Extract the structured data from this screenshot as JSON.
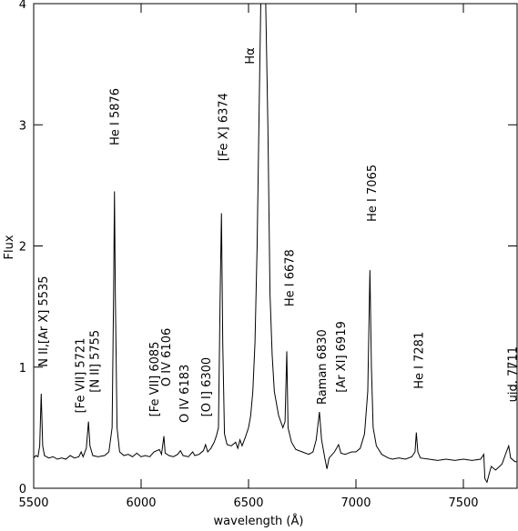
{
  "chart_data": {
    "type": "line",
    "x_label": "wavelength (Å)",
    "y_label": "Flux",
    "xlim": [
      5500,
      7750
    ],
    "ylim": [
      0,
      4
    ],
    "xticks": [
      5500,
      6000,
      6500,
      7000,
      7500
    ],
    "yticks": [
      0,
      1,
      2,
      3,
      4
    ],
    "color": "#000000",
    "x": [
      5500,
      5510,
      5520,
      5528,
      5535,
      5542,
      5550,
      5570,
      5590,
      5610,
      5630,
      5650,
      5670,
      5690,
      5710,
      5721,
      5730,
      5745,
      5755,
      5762,
      5775,
      5800,
      5830,
      5850,
      5865,
      5872,
      5876,
      5880,
      5888,
      5900,
      5920,
      5940,
      5960,
      5980,
      6000,
      6020,
      6040,
      6060,
      6085,
      6095,
      6106,
      6112,
      6130,
      6150,
      6170,
      6183,
      6195,
      6220,
      6240,
      6250,
      6270,
      6290,
      6300,
      6310,
      6325,
      6340,
      6350,
      6360,
      6368,
      6374,
      6380,
      6388,
      6400,
      6420,
      6440,
      6450,
      6460,
      6470,
      6485,
      6500,
      6510,
      6520,
      6530,
      6540,
      6550,
      6557,
      6580,
      6590,
      6600,
      6610,
      6620,
      6640,
      6660,
      6670,
      6678,
      6684,
      6700,
      6720,
      6750,
      6780,
      6800,
      6815,
      6830,
      6840,
      6855,
      6865,
      6875,
      6900,
      6919,
      6930,
      6950,
      6980,
      7000,
      7020,
      7040,
      7055,
      7065,
      7072,
      7080,
      7095,
      7120,
      7150,
      7170,
      7200,
      7230,
      7260,
      7275,
      7281,
      7288,
      7300,
      7340,
      7380,
      7420,
      7460,
      7500,
      7540,
      7580,
      7595,
      7600,
      7610,
      7620,
      7630,
      7650,
      7680,
      7700,
      7711,
      7720,
      7740,
      7750
    ],
    "values": [
      0.25,
      0.27,
      0.26,
      0.35,
      0.78,
      0.35,
      0.27,
      0.25,
      0.26,
      0.24,
      0.25,
      0.24,
      0.27,
      0.25,
      0.26,
      0.3,
      0.26,
      0.33,
      0.55,
      0.35,
      0.27,
      0.26,
      0.27,
      0.3,
      0.5,
      1.6,
      2.45,
      1.6,
      0.5,
      0.3,
      0.27,
      0.28,
      0.26,
      0.29,
      0.26,
      0.27,
      0.26,
      0.3,
      0.32,
      0.28,
      0.43,
      0.29,
      0.27,
      0.26,
      0.28,
      0.31,
      0.27,
      0.26,
      0.3,
      0.27,
      0.28,
      0.31,
      0.36,
      0.3,
      0.33,
      0.38,
      0.43,
      0.5,
      1.6,
      2.27,
      1.2,
      0.45,
      0.36,
      0.35,
      0.38,
      0.33,
      0.4,
      0.35,
      0.42,
      0.5,
      0.6,
      0.8,
      1.2,
      2.0,
      3.2,
      4,
      4,
      3.0,
      1.6,
      1.1,
      0.8,
      0.6,
      0.5,
      0.55,
      1.13,
      0.5,
      0.38,
      0.32,
      0.3,
      0.28,
      0.3,
      0.4,
      0.63,
      0.4,
      0.25,
      0.16,
      0.25,
      0.3,
      0.36,
      0.29,
      0.28,
      0.3,
      0.3,
      0.33,
      0.45,
      0.8,
      1.8,
      1.0,
      0.5,
      0.35,
      0.28,
      0.25,
      0.24,
      0.25,
      0.24,
      0.26,
      0.3,
      0.46,
      0.3,
      0.25,
      0.24,
      0.23,
      0.24,
      0.23,
      0.24,
      0.23,
      0.24,
      0.28,
      0.08,
      0.05,
      0.12,
      0.18,
      0.15,
      0.2,
      0.3,
      0.35,
      0.25,
      0.22,
      0.22
    ],
    "annotations": [
      {
        "text": "N II,[Ar X] 5535",
        "x": 5543,
        "y": 1.0
      },
      {
        "text": "[Fe VII] 5721",
        "x": 5714,
        "y": 0.62
      },
      {
        "text": "[N II] 5755",
        "x": 5782,
        "y": 0.79
      },
      {
        "text": "He I 5876",
        "x": 5876,
        "y": 2.83
      },
      {
        "text": "[Fe VII] 6085",
        "x": 6060,
        "y": 0.59
      },
      {
        "text": "O IV 6106",
        "x": 6115,
        "y": 0.84
      },
      {
        "text": "O IV 6183",
        "x": 6200,
        "y": 0.54
      },
      {
        "text": "[O I] 6300",
        "x": 6300,
        "y": 0.59
      },
      {
        "text": "[Fe X] 6374",
        "x": 6380,
        "y": 2.7
      },
      {
        "text": "Hα",
        "x": 6504,
        "y": 3.5
      },
      {
        "text": "He I 6678",
        "x": 6688,
        "y": 1.5
      },
      {
        "text": "Raman 6830",
        "x": 6838,
        "y": 0.69
      },
      {
        "text": "[Ar XI] 6919",
        "x": 6927,
        "y": 0.79
      },
      {
        "text": "He I 7065",
        "x": 7073,
        "y": 2.2
      },
      {
        "text": "He I 7281",
        "x": 7290,
        "y": 0.82
      },
      {
        "text": "uid. 7711",
        "x": 7726,
        "y": 0.71
      }
    ]
  }
}
